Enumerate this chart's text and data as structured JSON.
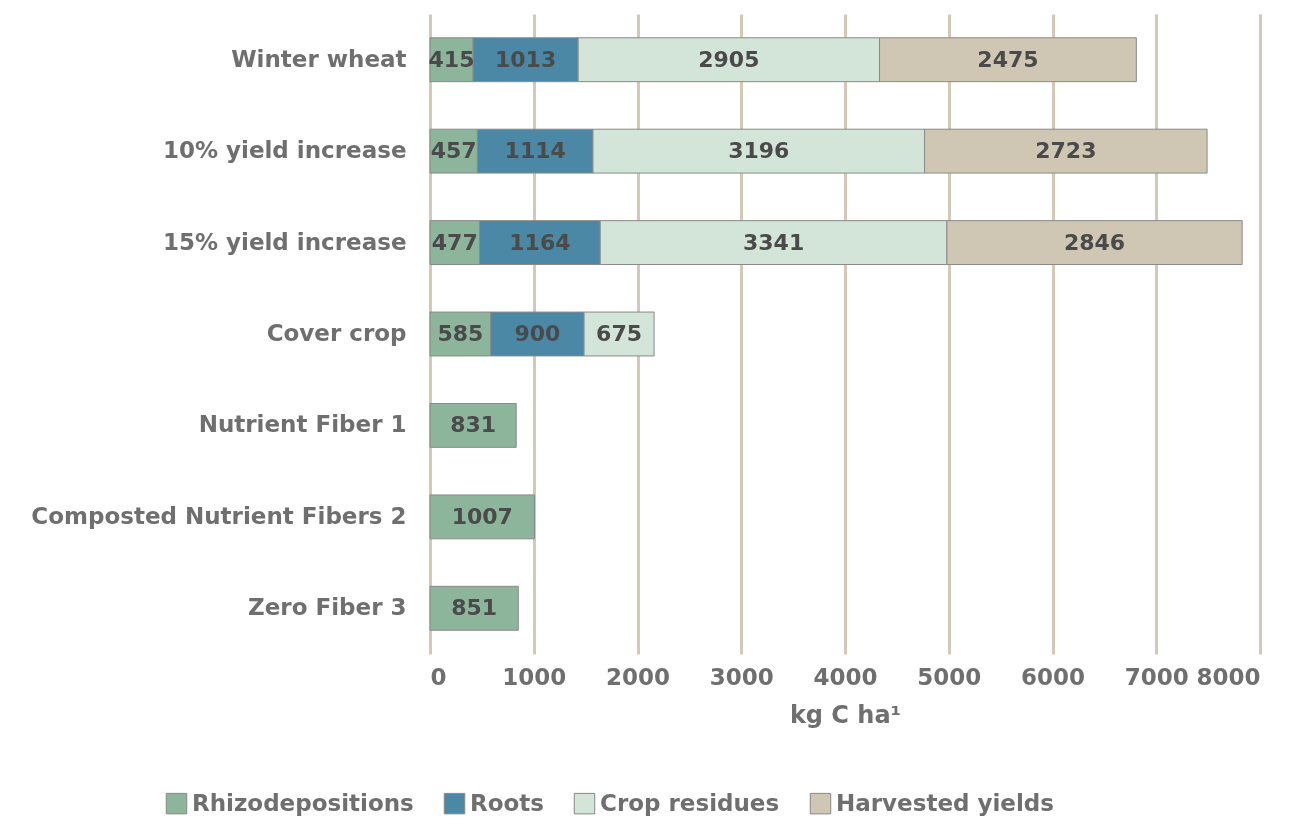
{
  "chart_data": {
    "type": "bar",
    "orientation": "horizontal",
    "stacked": true,
    "categories": [
      "Winter wheat",
      "10% yield increase",
      "15% yield increase",
      "Cover crop",
      "Nutrient Fiber 1",
      "Composted Nutrient Fibers 2",
      "Zero Fiber 3"
    ],
    "series": [
      {
        "name": "Rhizodepositions",
        "color": "#8db59c",
        "values": [
          415,
          457,
          477,
          585,
          831,
          1007,
          851
        ]
      },
      {
        "name": "Roots",
        "color": "#4a88a6",
        "values": [
          1013,
          1114,
          1164,
          900,
          null,
          null,
          null
        ]
      },
      {
        "name": "Crop residues",
        "color": "#d3e4d8",
        "values": [
          2905,
          3196,
          3341,
          675,
          null,
          null,
          null
        ]
      },
      {
        "name": "Harvested yields",
        "color": "#d0c6b4",
        "values": [
          2475,
          2723,
          2846,
          null,
          null,
          null,
          null
        ]
      }
    ],
    "xlabel": "kg C ha¹",
    "xlim": [
      0,
      8000
    ],
    "xticks": [
      0,
      1000,
      2000,
      3000,
      4000,
      5000,
      6000,
      7000,
      8000
    ],
    "grid": "x",
    "legend": "bottom",
    "data_labels": true
  }
}
